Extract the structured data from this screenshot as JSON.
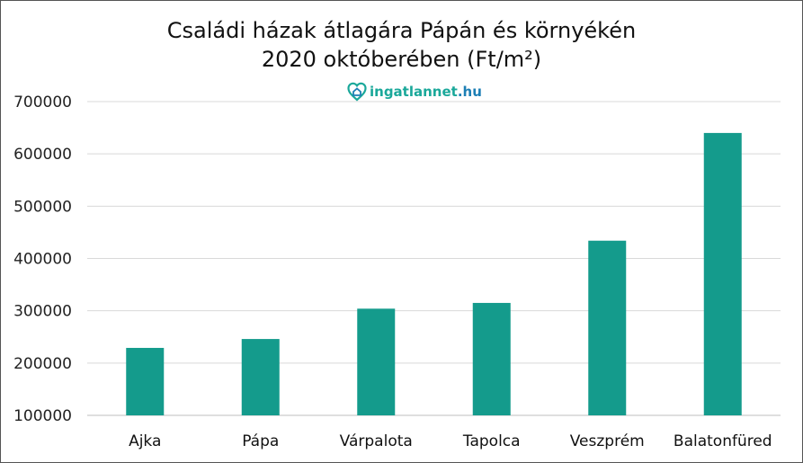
{
  "chart_data": {
    "type": "bar",
    "title": "Családi házak átlagára Pápán és környékén",
    "subtitle": "2020 októberében (Ft/m²)",
    "categories": [
      "Ajka",
      "Pápa",
      "Várpalota",
      "Tapolca",
      "Veszprém",
      "Balatonfüred"
    ],
    "values": [
      229000,
      246000,
      304000,
      315000,
      434000,
      640000
    ],
    "ylim": [
      100000,
      700000
    ],
    "yticks": [
      100000,
      200000,
      300000,
      400000,
      500000,
      600000,
      700000
    ],
    "ytick_labels": [
      "100000",
      "200000",
      "300000",
      "400000",
      "500000",
      "600000",
      "700000"
    ],
    "grid": true,
    "bar_color": "#149b8c"
  },
  "logo": {
    "brand": "ingatlannet",
    "tld": ".hu",
    "icon": "house-heart-icon",
    "brand_color": "#1aa89a",
    "tld_color": "#1d7fb5"
  }
}
